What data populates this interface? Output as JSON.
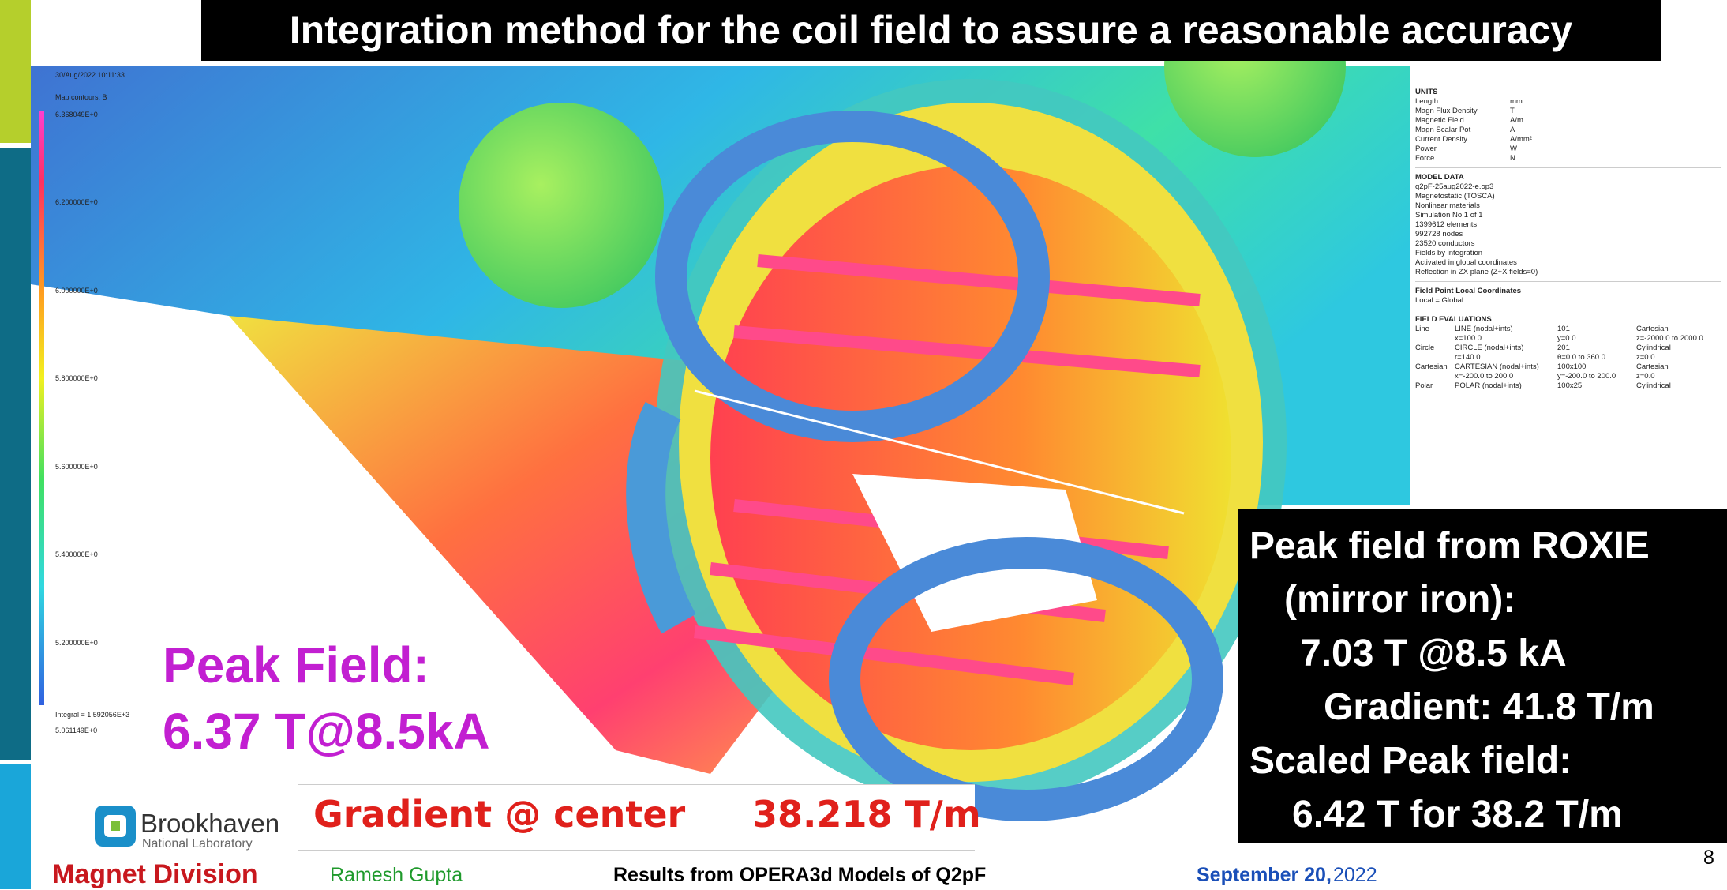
{
  "header": {
    "title": "Integration method for the coil field to assure a reasonable accuracy"
  },
  "contour_legend": {
    "timestamp": "30/Aug/2022 10:11:33",
    "heading": "Map contours: B",
    "labels": [
      "6.368049E+0",
      "6.200000E+0",
      "6.000000E+0",
      "5.800000E+0",
      "5.600000E+0",
      "5.400000E+0",
      "5.200000E+0",
      "5.061149E+0"
    ],
    "integral": "Integral = 1.592056E+3"
  },
  "info_panel": {
    "units_heading": "UNITS",
    "units": [
      [
        "Length",
        "mm"
      ],
      [
        "Magn Flux Density",
        "T"
      ],
      [
        "Magnetic Field",
        "A/m"
      ],
      [
        "Magn Scalar Pot",
        "A"
      ],
      [
        "Current Density",
        "A/mm²"
      ],
      [
        "Power",
        "W"
      ],
      [
        "Force",
        "N"
      ]
    ],
    "model_heading": "MODEL DATA",
    "model": [
      "q2pF-25aug2022-e.op3",
      "Magnetostatic (TOSCA)",
      "Nonlinear materials",
      "Simulation No 1 of 1",
      "1399612 elements",
      "992728 nodes",
      "23520 conductors",
      "Fields by integration",
      "Activated in global coordinates",
      "Reflection in ZX plane (Z+X fields=0)"
    ],
    "local_heading": "Field Point Local Coordinates",
    "local": "Local = Global",
    "eval_heading": "FIELD EVALUATIONS",
    "evaluations": [
      [
        "Line",
        "LINE (nodal+ints)",
        "101",
        "Cartesian"
      ],
      [
        "",
        "x=100.0",
        "y=0.0",
        "z=-2000.0 to 2000.0"
      ],
      [
        "Circle",
        "CIRCLE (nodal+ints)",
        "201",
        "Cylindrical"
      ],
      [
        "",
        "r=140.0",
        "θ=0.0 to 360.0",
        "z=0.0"
      ],
      [
        "Cartesian",
        "CARTESIAN (nodal+ints)",
        "100x100",
        "Cartesian"
      ],
      [
        "",
        "x=-200.0 to 200.0",
        "y=-200.0 to 200.0",
        "z=0.0"
      ],
      [
        "Polar",
        "POLAR (nodal+ints)",
        "100x25",
        "Cylindrical"
      ]
    ]
  },
  "peak_field": {
    "line1": "Peak Field:",
    "line2": "6.37 T@8.5kA"
  },
  "roxie_box": {
    "lines": [
      "Peak field from ROXIE",
      "(mirror iron):",
      "7.03 T @8.5 kA",
      "Gradient: 41.8 T/m",
      "Scaled Peak field:",
      "6.42 T for 38.2 T/m"
    ]
  },
  "gradient_table": {
    "label": "Gradient @ center",
    "value": "38.218 T/m"
  },
  "logo": {
    "name": "Brookhaven",
    "sub": "National Laboratory"
  },
  "footer": {
    "division": "Magnet Division",
    "author": "Ramesh Gupta",
    "subject": "Results from OPERA3d Models of Q2pF",
    "date_bold": "September 20,",
    "date_rest": "2022",
    "page": "8"
  }
}
